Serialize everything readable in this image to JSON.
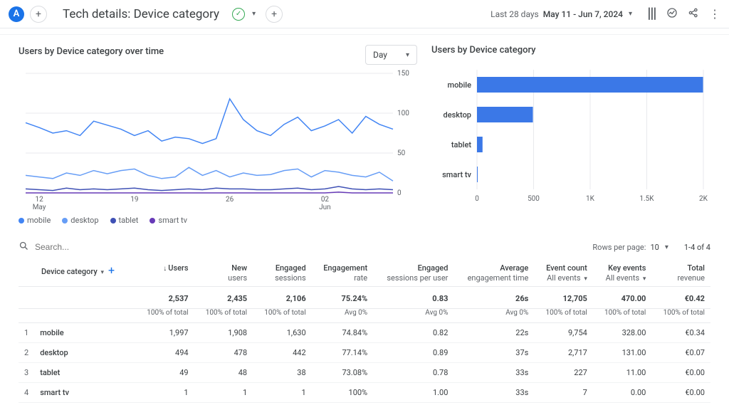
{
  "header": {
    "avatar_letter": "A",
    "title": "Tech details: Device category",
    "date_label": "Last 28 days",
    "date_value": "May 11 - Jun 7, 2024"
  },
  "line_chart": {
    "title": "Users by Device category over time",
    "selector_value": "Day",
    "ymax": 150,
    "yticks": [
      0,
      50,
      100,
      150
    ],
    "x_labels": [
      "12",
      "19",
      "26",
      "02"
    ],
    "x_sublabels": [
      "May",
      "",
      "",
      "Jun"
    ],
    "colors": {
      "mobile": "#4285f4",
      "desktop": "#669df6",
      "tablet": "#3f51b5",
      "smart_tv": "#673ab7",
      "background": "#ffffff",
      "grid": "#e8eaed"
    },
    "series": {
      "mobile": [
        88,
        82,
        75,
        78,
        72,
        90,
        85,
        80,
        72,
        78,
        65,
        70,
        68,
        62,
        68,
        118,
        92,
        78,
        72,
        86,
        95,
        78,
        84,
        92,
        75,
        96,
        86,
        80
      ],
      "desktop": [
        22,
        20,
        18,
        25,
        22,
        28,
        24,
        28,
        30,
        22,
        18,
        20,
        32,
        22,
        28,
        20,
        25,
        22,
        23,
        28,
        30,
        20,
        28,
        26,
        22,
        20,
        26,
        15
      ],
      "tablet": [
        5,
        4,
        3,
        6,
        4,
        5,
        4,
        5,
        6,
        4,
        3,
        4,
        5,
        4,
        6,
        5,
        5,
        4,
        4,
        5,
        6,
        4,
        5,
        8,
        5,
        4,
        5,
        4
      ],
      "smart_tv": [
        0,
        0,
        0,
        0,
        0,
        0,
        0,
        0,
        0,
        0,
        0,
        0,
        0,
        0,
        0,
        0,
        0,
        0,
        0,
        0,
        0,
        0,
        0,
        1,
        0,
        0,
        0,
        0
      ]
    },
    "legend": [
      {
        "label": "mobile",
        "color": "#4285f4"
      },
      {
        "label": "desktop",
        "color": "#669df6"
      },
      {
        "label": "tablet",
        "color": "#3f51b5"
      },
      {
        "label": "smart tv",
        "color": "#673ab7"
      }
    ]
  },
  "bar_chart": {
    "title": "Users by Device category",
    "xmax": 2000,
    "xticks": [
      0,
      500,
      1000,
      1500,
      2000
    ],
    "xtick_labels": [
      "0",
      "500",
      "1K",
      "1.5K",
      "2K"
    ],
    "bar_color": "#3b78e7",
    "bars": [
      {
        "label": "mobile",
        "value": 1997
      },
      {
        "label": "desktop",
        "value": 494
      },
      {
        "label": "tablet",
        "value": 49
      },
      {
        "label": "smart tv",
        "value": 1
      }
    ]
  },
  "table": {
    "search_placeholder": "Search...",
    "rows_per_page_label": "Rows per page:",
    "rows_per_page_value": "10",
    "range_text": "1-4 of 4",
    "first_col_label": "Device category",
    "columns": [
      {
        "label": "Users",
        "sub": "",
        "sorted": true
      },
      {
        "label": "New",
        "sub": "users"
      },
      {
        "label": "Engaged",
        "sub": "sessions"
      },
      {
        "label": "Engagement",
        "sub": "rate"
      },
      {
        "label": "Engaged",
        "sub": "sessions per user"
      },
      {
        "label": "Average",
        "sub": "engagement time"
      },
      {
        "label": "Event count",
        "sub": "All events"
      },
      {
        "label": "Key events",
        "sub": "All events"
      },
      {
        "label": "Total",
        "sub": "revenue"
      }
    ],
    "totals": [
      "2,537",
      "2,435",
      "2,106",
      "75.24%",
      "0.83",
      "26s",
      "12,705",
      "470.00",
      "€0.42"
    ],
    "totals_sub": [
      "100% of total",
      "100% of total",
      "100% of total",
      "Avg 0%",
      "Avg 0%",
      "Avg 0%",
      "100% of total",
      "100% of total",
      "100% of total"
    ],
    "rows": [
      {
        "idx": "1",
        "label": "mobile",
        "cells": [
          "1,997",
          "1,908",
          "1,630",
          "74.84%",
          "0.82",
          "22s",
          "9,754",
          "328.00",
          "€0.34"
        ]
      },
      {
        "idx": "2",
        "label": "desktop",
        "cells": [
          "494",
          "478",
          "442",
          "77.14%",
          "0.89",
          "37s",
          "2,717",
          "131.00",
          "€0.07"
        ]
      },
      {
        "idx": "3",
        "label": "tablet",
        "cells": [
          "49",
          "48",
          "38",
          "73.08%",
          "0.78",
          "33s",
          "227",
          "11.00",
          "€0.00"
        ]
      },
      {
        "idx": "4",
        "label": "smart tv",
        "cells": [
          "1",
          "1",
          "1",
          "100%",
          "1.00",
          "33s",
          "7",
          "0.00",
          "€0.00"
        ]
      }
    ]
  }
}
